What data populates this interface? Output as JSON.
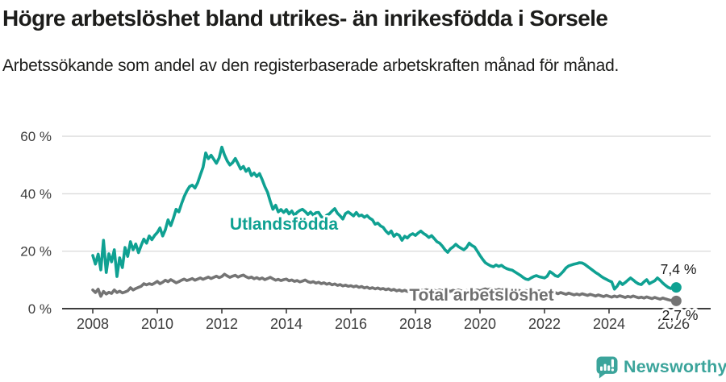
{
  "header": {
    "title": "Högre arbetslöshet bland utrikes- än inrikesfödda i Sorsele",
    "subtitle": "Arbetssökande som andel av den registerbaserade arbetskraften månad för månad."
  },
  "footer": {
    "brand": "Newsworthy"
  },
  "colors": {
    "teal_line": "#0FA192",
    "gray_line": "#747474",
    "axis_text": "#3c3c3c",
    "axis_line": "#3d3d3d",
    "gridline": "#dcdcdc",
    "title_text": "#1d1d1b",
    "logo_teal": "#3BA49B",
    "annotation_text": "#1a1a1a"
  },
  "chart_data": {
    "type": "line",
    "title": "Högre arbetslöshet bland utrikes- än inrikesfödda i Sorsele",
    "xlabel": "",
    "ylabel": "",
    "x_start_year": 2008,
    "x_step_months": 1,
    "xlim": [
      2008,
      2026.17
    ],
    "ylim": [
      0,
      60
    ],
    "grid": true,
    "legend": "inline-labels",
    "yticks": [
      {
        "value": 0,
        "label": "0 %"
      },
      {
        "value": 20,
        "label": "20 %"
      },
      {
        "value": 40,
        "label": "40 %"
      },
      {
        "value": 60,
        "label": "60 %"
      }
    ],
    "xticks": [
      "2008",
      "2010",
      "2012",
      "2014",
      "2016",
      "2018",
      "2020",
      "2022",
      "2024",
      "2026"
    ],
    "series": [
      {
        "name": "Utlandsfödda",
        "color": "#0FA192",
        "end_label": "7,4 %",
        "end_value": 7.4,
        "values": [
          18.5,
          15.5,
          19.0,
          13.5,
          23.8,
          12.6,
          19.1,
          16.3,
          20.5,
          11.2,
          17.7,
          14.3,
          21.3,
          18.2,
          23.3,
          20.5,
          22.5,
          19.5,
          22.0,
          24.2,
          22.8,
          25.3,
          24.0,
          25.5,
          26.5,
          28.1,
          25.3,
          27.5,
          30.9,
          28.9,
          31.5,
          34.6,
          33.7,
          36.5,
          39.0,
          41.0,
          42.5,
          43.0,
          42.0,
          43.8,
          46.5,
          49.2,
          54.2,
          52.2,
          53.4,
          52.0,
          50.6,
          52.5,
          56.2,
          53.5,
          51.4,
          50.0,
          50.8,
          52.3,
          50.5,
          48.6,
          49.5,
          47.8,
          48.8,
          46.3,
          47.2,
          46.0,
          47.0,
          44.9,
          42.5,
          40.5,
          37.4,
          34.6,
          36.0,
          33.7,
          34.5,
          33.5,
          34.5,
          33.0,
          34.0,
          32.5,
          33.5,
          34.2,
          34.6,
          33.8,
          32.8,
          33.6,
          32.6,
          33.4,
          33.5,
          32.0,
          31.5,
          32.5,
          33.0,
          34.0,
          34.8,
          33.2,
          32.3,
          31.2,
          33.1,
          33.7,
          33.0,
          32.3,
          33.5,
          32.3,
          32.6,
          31.8,
          32.4,
          31.5,
          30.9,
          29.4,
          29.8,
          28.8,
          28.3,
          27.0,
          26.1,
          27.0,
          25.2,
          26.0,
          25.5,
          23.8,
          25.2,
          24.6,
          25.6,
          26.1,
          25.5,
          26.3,
          27.0,
          26.2,
          25.6,
          24.8,
          25.4,
          24.4,
          23.3,
          22.8,
          21.8,
          20.5,
          19.6,
          20.8,
          21.5,
          22.4,
          21.6,
          21.0,
          20.5,
          21.3,
          22.8,
          22.0,
          21.5,
          20.0,
          18.5,
          17.2,
          16.0,
          15.4,
          14.9,
          14.6,
          15.2,
          14.7,
          15.1,
          14.4,
          13.9,
          13.6,
          13.4,
          12.8,
          12.2,
          11.6,
          10.9,
          10.3,
          10.1,
          10.7,
          11.2,
          11.5,
          11.1,
          10.9,
          10.7,
          11.3,
          12.9,
          12.3,
          11.5,
          11.2,
          12.0,
          13.0,
          14.2,
          14.9,
          15.2,
          15.5,
          15.7,
          16.0,
          15.9,
          15.4,
          14.7,
          14.0,
          13.3,
          12.6,
          12.0,
          11.3,
          10.7,
          10.2,
          9.7,
          9.3,
          6.8,
          7.8,
          9.3,
          8.4,
          9.1,
          9.9,
          10.7,
          10.0,
          9.2,
          8.6,
          8.4,
          9.3,
          10.1,
          8.7,
          9.2,
          9.7,
          10.7,
          9.9,
          8.9,
          8.1,
          7.4,
          7.0,
          7.9,
          7.4
        ]
      },
      {
        "name": "Total arbetslöshet",
        "color": "#747474",
        "end_label": "2,7 %",
        "end_value": 2.7,
        "values": [
          6.5,
          5.6,
          6.8,
          4.3,
          6.0,
          5.1,
          5.7,
          5.3,
          6.5,
          5.6,
          6.1,
          5.5,
          5.8,
          6.2,
          7.3,
          6.5,
          7.0,
          7.4,
          7.8,
          8.7,
          8.3,
          8.7,
          8.4,
          8.9,
          9.5,
          8.7,
          9.2,
          9.9,
          9.4,
          10.1,
          9.6,
          9.0,
          9.4,
          9.9,
          10.3,
          9.8,
          10.1,
          10.5,
          9.9,
          10.3,
          10.7,
          10.2,
          10.6,
          11.0,
          10.5,
          10.9,
          11.3,
          10.8,
          11.2,
          12.0,
          11.4,
          10.9,
          11.3,
          11.6,
          11.0,
          11.4,
          11.7,
          11.1,
          10.7,
          11.0,
          10.4,
          10.8,
          10.3,
          10.7,
          10.1,
          10.5,
          10.9,
          10.4,
          9.9,
          10.2,
          9.8,
          10.1,
          10.3,
          9.7,
          10.0,
          9.5,
          9.8,
          9.3,
          9.6,
          10.0,
          9.4,
          9.1,
          9.4,
          8.9,
          9.2,
          8.7,
          9.0,
          8.5,
          8.8,
          8.3,
          8.6,
          8.1,
          8.4,
          7.9,
          8.2,
          7.8,
          8.0,
          7.6,
          7.9,
          7.4,
          7.7,
          7.2,
          7.5,
          7.0,
          7.3,
          6.9,
          7.2,
          6.8,
          7.0,
          6.6,
          6.9,
          6.4,
          6.7,
          6.2,
          6.5,
          6.1,
          6.4,
          6.0,
          6.3,
          5.9,
          6.4,
          6.1,
          6.5,
          6.2,
          6.6,
          6.3,
          6.0,
          6.4,
          6.1,
          6.5,
          6.2,
          6.6,
          6.3,
          6.0,
          6.4,
          6.1,
          6.5,
          6.2,
          5.9,
          6.3,
          6.0,
          6.4,
          6.1,
          6.5,
          6.2,
          6.6,
          6.9,
          6.6,
          7.0,
          6.7,
          6.4,
          6.7,
          6.4,
          6.8,
          6.5,
          6.2,
          6.4,
          6.1,
          6.5,
          6.2,
          5.9,
          6.3,
          6.0,
          5.7,
          6.1,
          5.8,
          6.2,
          5.9,
          6.0,
          5.7,
          6.1,
          5.8,
          5.6,
          5.2,
          5.6,
          5.3,
          5.0,
          5.4,
          5.1,
          4.8,
          5.1,
          4.8,
          5.2,
          4.9,
          4.6,
          5.0,
          4.7,
          4.4,
          4.8,
          4.5,
          4.2,
          4.6,
          4.3,
          4.0,
          4.4,
          4.1,
          4.5,
          4.2,
          3.9,
          4.3,
          4.0,
          4.4,
          4.1,
          3.8,
          4.0,
          3.7,
          4.1,
          3.8,
          3.5,
          3.9,
          3.6,
          3.3,
          3.7,
          3.4,
          3.1,
          2.9,
          2.8,
          2.7
        ]
      }
    ]
  }
}
